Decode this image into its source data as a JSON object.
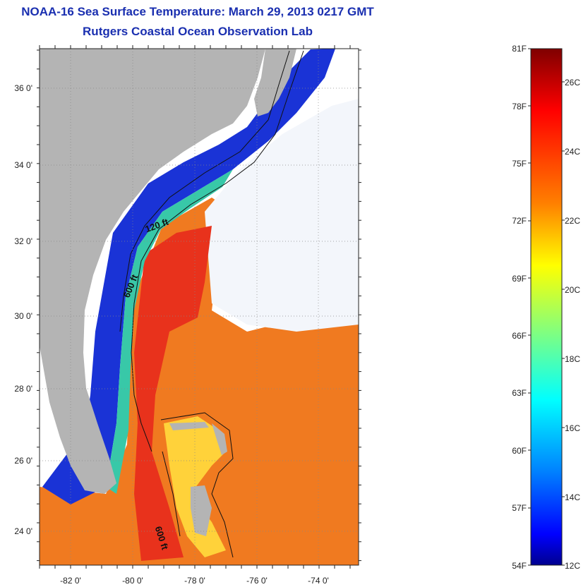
{
  "title": "NOAA-16 Sea Surface Temperature:  March 29, 2013 0217 GMT",
  "subtitle": "Rutgers Coastal Ocean Observation Lab",
  "lat_labels": [
    "36 0'",
    "34 0'",
    "32 0'",
    "30 0'",
    "28 0'",
    "26 0'",
    "24 0'"
  ],
  "lon_labels": [
    "-82 0'",
    "-80 0'",
    "-78 0'",
    "-76 0'",
    "-74 0'"
  ],
  "contour_labels": [
    "120 ft",
    "600 ft",
    "600 ft"
  ],
  "colorbar": {
    "fahrenheit": [
      "81F",
      "78F",
      "75F",
      "72F",
      "69F",
      "66F",
      "63F",
      "60F",
      "57F",
      "54F"
    ],
    "celsius": [
      "26C",
      "24C",
      "22C",
      "20C",
      "18C",
      "16C",
      "14C",
      "12C"
    ],
    "colors": [
      "#7f0000",
      "#ff0000",
      "#ff8000",
      "#ffff00",
      "#80ff80",
      "#00ffff",
      "#0080ff",
      "#0000ff",
      "#00008f"
    ]
  },
  "colors": {
    "land": "#b4b4b4",
    "water_nodata": "#ffffff",
    "title": "#1a2fb0"
  }
}
